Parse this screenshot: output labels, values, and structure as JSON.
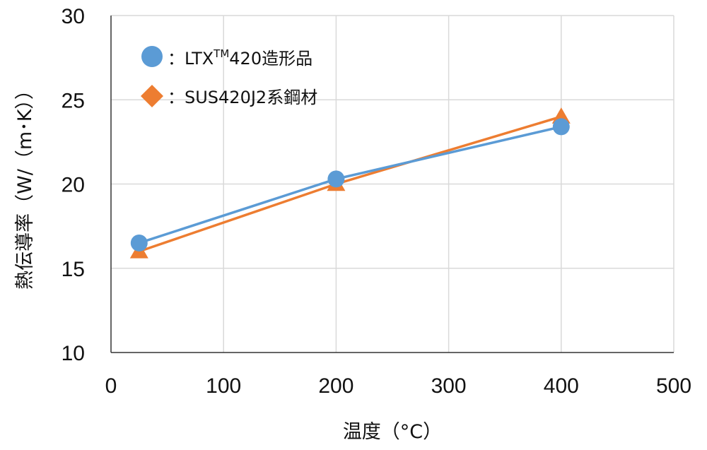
{
  "chart_data": {
    "type": "line",
    "xlabel": "温度（°C）",
    "ylabel": "熱伝導率（W/（m･K））",
    "xlim": [
      0,
      500
    ],
    "ylim": [
      10,
      30
    ],
    "xticks": [
      "0",
      "100",
      "200",
      "300",
      "400",
      "500"
    ],
    "yticks": [
      "10",
      "15",
      "20",
      "25",
      "30"
    ],
    "grid": true,
    "legend_position": "top-left",
    "series": [
      {
        "name_prefix": "：LTX",
        "name_sup": "TM",
        "name_suffix": "420造形品",
        "marker": "circle",
        "color": "#5B9BD5",
        "x": [
          25,
          200,
          400
        ],
        "y": [
          16.5,
          20.3,
          23.4
        ]
      },
      {
        "name": "：SUS420J2系鋼材",
        "marker": "triangle",
        "legend_marker": "diamond",
        "color": "#ED7D31",
        "x": [
          25,
          200,
          400
        ],
        "y": [
          16.0,
          20.0,
          24.0
        ]
      }
    ]
  }
}
